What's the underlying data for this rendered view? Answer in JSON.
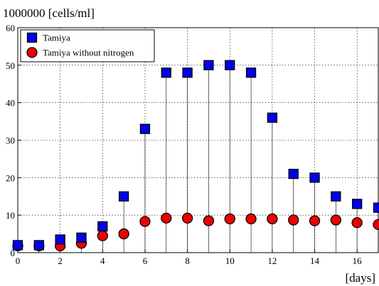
{
  "chart_data": {
    "type": "scatter",
    "ylabel": "1000000 [cells/ml]",
    "xlabel": "[days]",
    "xlim": [
      0,
      17
    ],
    "ylim": [
      0,
      60
    ],
    "xticks": [
      "0",
      "2",
      "4",
      "6",
      "8",
      "10",
      "12",
      "14",
      "16"
    ],
    "yticks": [
      "0",
      "10",
      "20",
      "30",
      "40",
      "50",
      "60"
    ],
    "grid": true,
    "legend_position": "top-left",
    "series": [
      {
        "name": "Tamiya",
        "marker": "square",
        "color": "#0000ee",
        "x": [
          0,
          1,
          2,
          3,
          4,
          5,
          6,
          7,
          8,
          9,
          10,
          11,
          12,
          13,
          14,
          15,
          16,
          17
        ],
        "y": [
          2,
          2,
          3.5,
          4,
          7,
          15,
          33,
          48,
          48,
          50,
          50,
          48,
          36,
          21,
          20,
          15,
          13,
          12
        ]
      },
      {
        "name": "Tamiya without nitrogen",
        "marker": "circle",
        "color": "#ee0000",
        "x": [
          0,
          1,
          2,
          3,
          4,
          5,
          6,
          7,
          8,
          9,
          10,
          11,
          12,
          13,
          14,
          15,
          16,
          17
        ],
        "y": [
          1.8,
          1.8,
          1.8,
          2.5,
          4.5,
          5,
          8.3,
          9.2,
          9.2,
          8.5,
          9,
          9,
          9,
          8.7,
          8.5,
          8.7,
          8,
          7.5
        ]
      }
    ]
  }
}
